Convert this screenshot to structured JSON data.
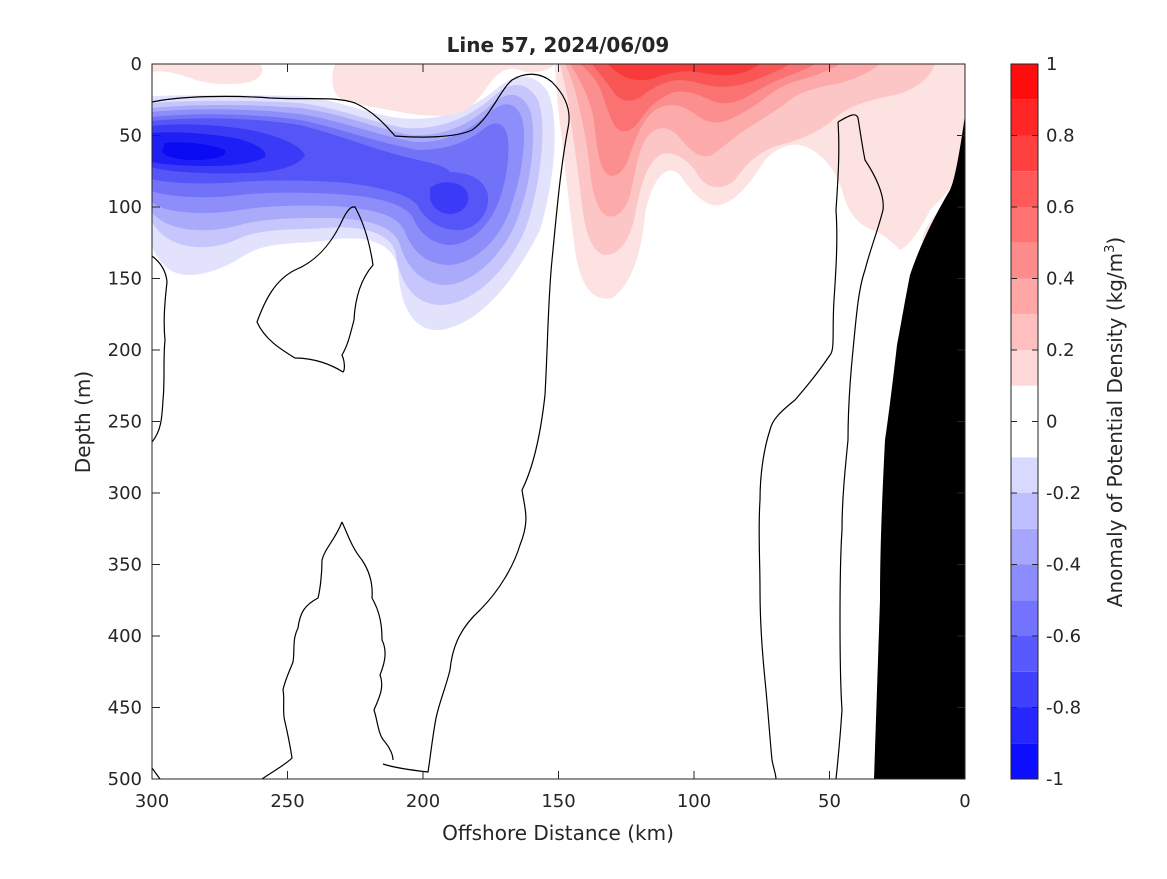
{
  "chart_data": {
    "type": "contour",
    "title": "Line 57, 2024/06/09",
    "xlabel": "Offshore Distance (km)",
    "ylabel": "Depth (m)",
    "xlim": [
      300,
      0
    ],
    "ylim": [
      0,
      500
    ],
    "x_reversed": true,
    "y_reversed": true,
    "x_ticks": [
      300,
      250,
      200,
      150,
      100,
      50,
      0
    ],
    "y_ticks": [
      0,
      50,
      100,
      150,
      200,
      250,
      300,
      350,
      400,
      450,
      500
    ],
    "colorbar": {
      "label_main": "Anomaly of Potential Density (kg/m",
      "label_sup": "3",
      "label_end": ")",
      "range": [
        -1,
        1
      ],
      "levels": [
        -1,
        -0.9,
        -0.8,
        -0.7,
        -0.6,
        -0.5,
        -0.4,
        -0.3,
        -0.2,
        -0.1,
        0,
        0.1,
        0.2,
        0.3,
        0.4,
        0.5,
        0.6,
        0.7,
        0.8,
        0.9,
        1
      ],
      "ticks": [
        -1,
        -0.8,
        -0.6,
        -0.4,
        -0.2,
        0,
        0.2,
        0.4,
        0.6,
        0.8,
        1
      ],
      "tick_labels": [
        "-1",
        "-0.8",
        "-0.6",
        "-0.4",
        "-0.2",
        "0",
        "0.2",
        "0.4",
        "0.6",
        "0.8",
        "1"
      ]
    },
    "bathymetry_color": "#000000",
    "colors": {
      "negative_max": "#0000ff",
      "positive_max": "#ff0000",
      "neutral": "#ffffff"
    },
    "anomaly_centers": [
      {
        "name": "surface-negative-core",
        "x": 287,
        "y": 68,
        "value": -0.85
      },
      {
        "name": "mid-negative-core",
        "x": 190,
        "y": 95,
        "value": -0.65
      },
      {
        "name": "near-surface-negative",
        "x": 160,
        "y": 40,
        "value": -0.4
      },
      {
        "name": "surface-positive-core",
        "x": 110,
        "y": 12,
        "value": 0.65
      },
      {
        "name": "positive-tongue",
        "x": 130,
        "y": 90,
        "value": 0.35
      }
    ]
  }
}
